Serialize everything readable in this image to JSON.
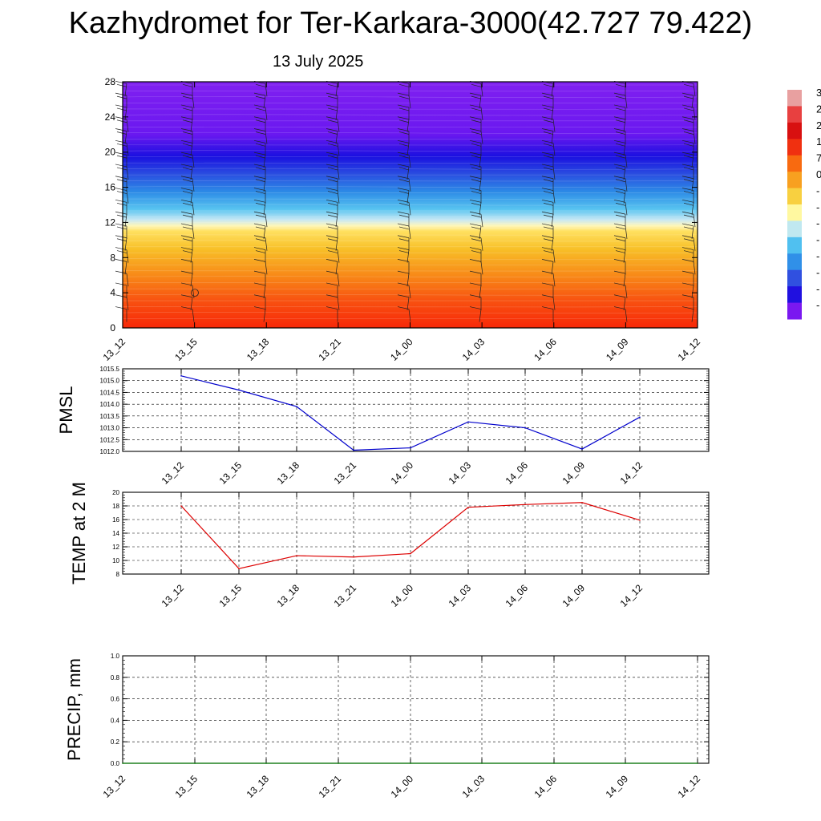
{
  "header": {
    "title": "Kazhydromet for Ter-Karkara-3000(42.727 79.422)",
    "date": "13 July 2025"
  },
  "colorbar": {
    "labels": [
      "3",
      "2",
      "2",
      "1",
      "7",
      "0",
      "-",
      "-",
      "-",
      "-",
      "-",
      "-",
      "-",
      "-"
    ],
    "colors": [
      "#e8a0a0",
      "#e84040",
      "#d81010",
      "#f03010",
      "#f86a10",
      "#f8a020",
      "#f8d040",
      "#fff8a0",
      "#c0e8f0",
      "#50c0f0",
      "#3090e8",
      "#3050e0",
      "#2010e0",
      "#7a18f0"
    ]
  },
  "chart_data": [
    {
      "type": "heatmap",
      "name": "temperature-cross-section",
      "categories": [
        "13_12",
        "13_15",
        "13_18",
        "13_21",
        "14_00",
        "14_03",
        "14_06",
        "14_09",
        "14_12"
      ],
      "ylim": [
        0,
        28
      ],
      "yticks": [
        0,
        4,
        8,
        12,
        16,
        20,
        24,
        28
      ],
      "grid": false,
      "wind_barbs": true,
      "color_stops": [
        {
          "y": 0,
          "color": "#f82808"
        },
        {
          "y": 3,
          "color": "#f85010"
        },
        {
          "y": 6,
          "color": "#f88a18"
        },
        {
          "y": 9,
          "color": "#f8c028"
        },
        {
          "y": 11,
          "color": "#ffe060"
        },
        {
          "y": 11.6,
          "color": "#fff6b8"
        },
        {
          "y": 12.3,
          "color": "#c8e8f4"
        },
        {
          "y": 13.5,
          "color": "#58c4f0"
        },
        {
          "y": 15.5,
          "color": "#2c8ae6"
        },
        {
          "y": 17.5,
          "color": "#2a4ee0"
        },
        {
          "y": 19.5,
          "color": "#1a10e0"
        },
        {
          "y": 22,
          "color": "#6a18f0"
        },
        {
          "y": 28,
          "color": "#8020f0"
        }
      ]
    },
    {
      "type": "line",
      "name": "pmsl",
      "ylabel": "PMSL",
      "categories": [
        "13_12",
        "13_15",
        "13_18",
        "13_21",
        "14_00",
        "14_03",
        "14_06",
        "14_09",
        "14_12"
      ],
      "values": [
        1015.2,
        1014.6,
        1013.9,
        1012.05,
        1012.15,
        1013.25,
        1013.0,
        1012.1,
        1013.45
      ],
      "ylim": [
        1012.0,
        1015.5
      ],
      "yticks": [
        "1012.0",
        "1012.5",
        "1013.0",
        "1013.5",
        "1014.0",
        "1014.5",
        "1015.0",
        "1015.5"
      ],
      "color": "#0000cc",
      "grid": true
    },
    {
      "type": "line",
      "name": "temp-2m",
      "ylabel": "TEMP at 2 M",
      "categories": [
        "13_12",
        "13_15",
        "13_18",
        "13_21",
        "14_00",
        "14_03",
        "14_06",
        "14_09",
        "14_12"
      ],
      "values": [
        18.0,
        8.8,
        10.7,
        10.5,
        11.0,
        17.8,
        18.2,
        18.5,
        15.9
      ],
      "ylim": [
        8,
        20
      ],
      "yticks": [
        "8",
        "10",
        "12",
        "14",
        "16",
        "18",
        "20"
      ],
      "color": "#dd0000",
      "grid": true
    },
    {
      "type": "line",
      "name": "precip",
      "ylabel": "PRECIP, mm",
      "categories": [
        "13_12",
        "13_15",
        "13_18",
        "13_21",
        "14_00",
        "14_03",
        "14_06",
        "14_09",
        "14_12"
      ],
      "values": [
        0,
        0,
        0,
        0,
        0,
        0,
        0,
        0,
        0
      ],
      "ylim": [
        0,
        1.0
      ],
      "yticks": [
        "0.0",
        "0.2",
        "0.4",
        "0.6",
        "0.8",
        "1.0"
      ],
      "color": "#007700",
      "grid": true
    }
  ]
}
